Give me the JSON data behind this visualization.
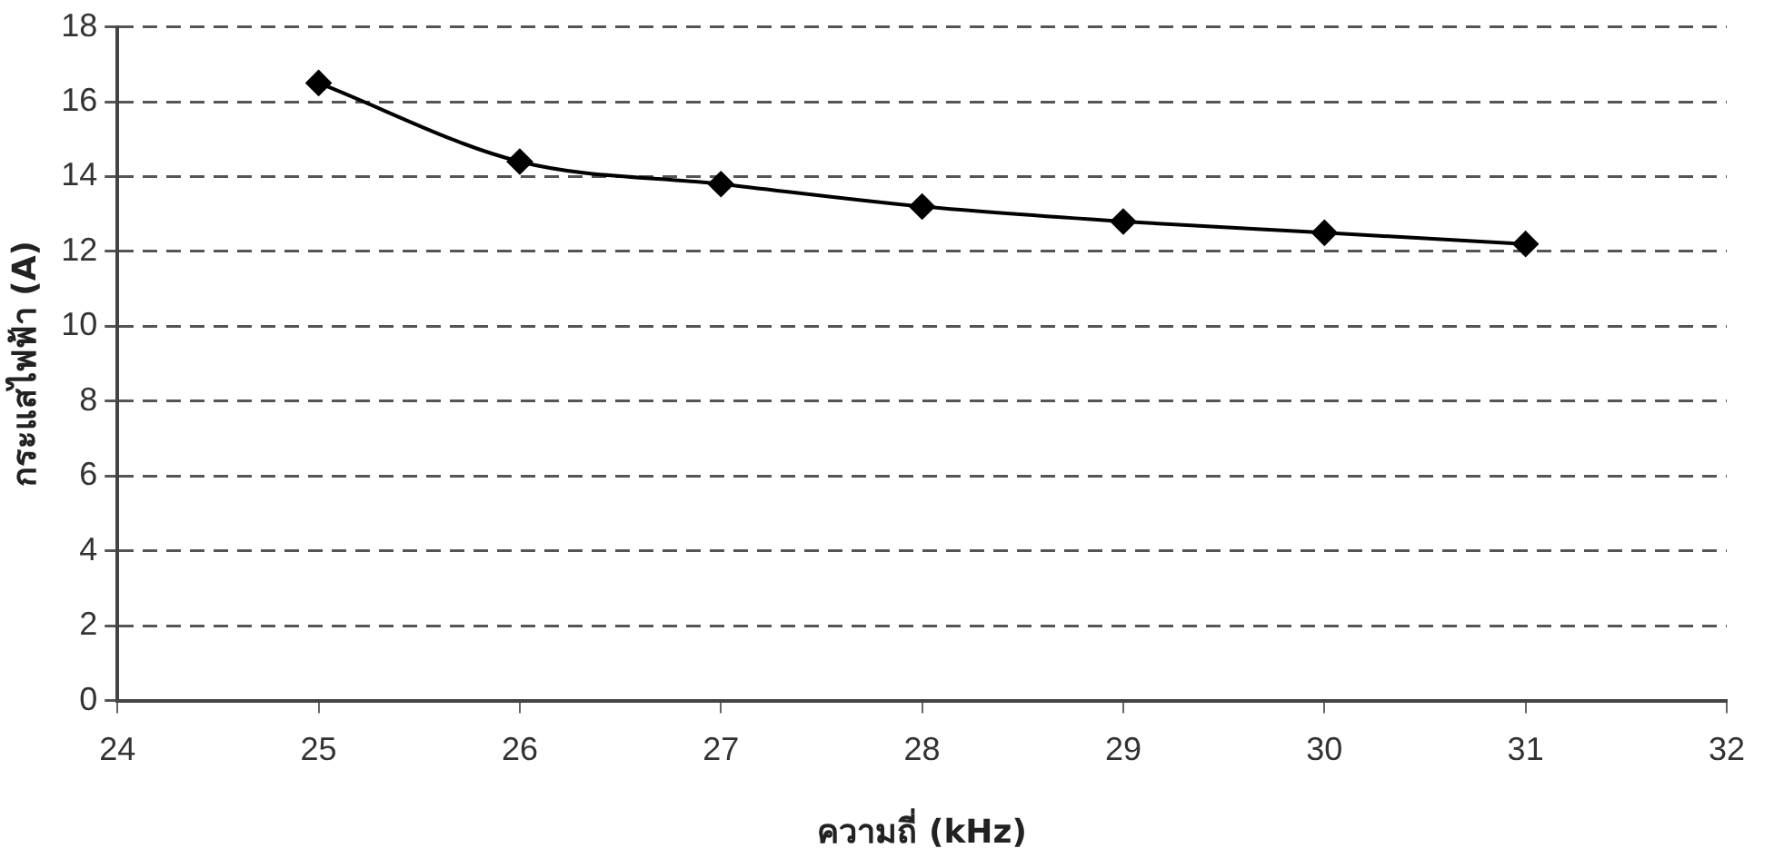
{
  "chart_data": {
    "type": "line",
    "xlabel": "ความถี่ (kHz)",
    "ylabel": "กระแสไฟฟ้า (A)",
    "x": [
      25,
      26,
      27,
      28,
      29,
      30,
      31
    ],
    "series": [
      {
        "color": "#000000",
        "values": [
          16.5,
          14.4,
          13.8,
          13.2,
          12.8,
          12.5,
          12.2
        ]
      }
    ],
    "xlim": [
      24,
      32
    ],
    "xticks": [
      24,
      25,
      26,
      27,
      28,
      29,
      30,
      31,
      32
    ],
    "ylim": [
      0,
      18
    ],
    "yticks": [
      0,
      2,
      4,
      6,
      8,
      10,
      12,
      14,
      16,
      18
    ],
    "grid": "y",
    "marker": "diamond",
    "line_style": "solid",
    "legend": false
  }
}
